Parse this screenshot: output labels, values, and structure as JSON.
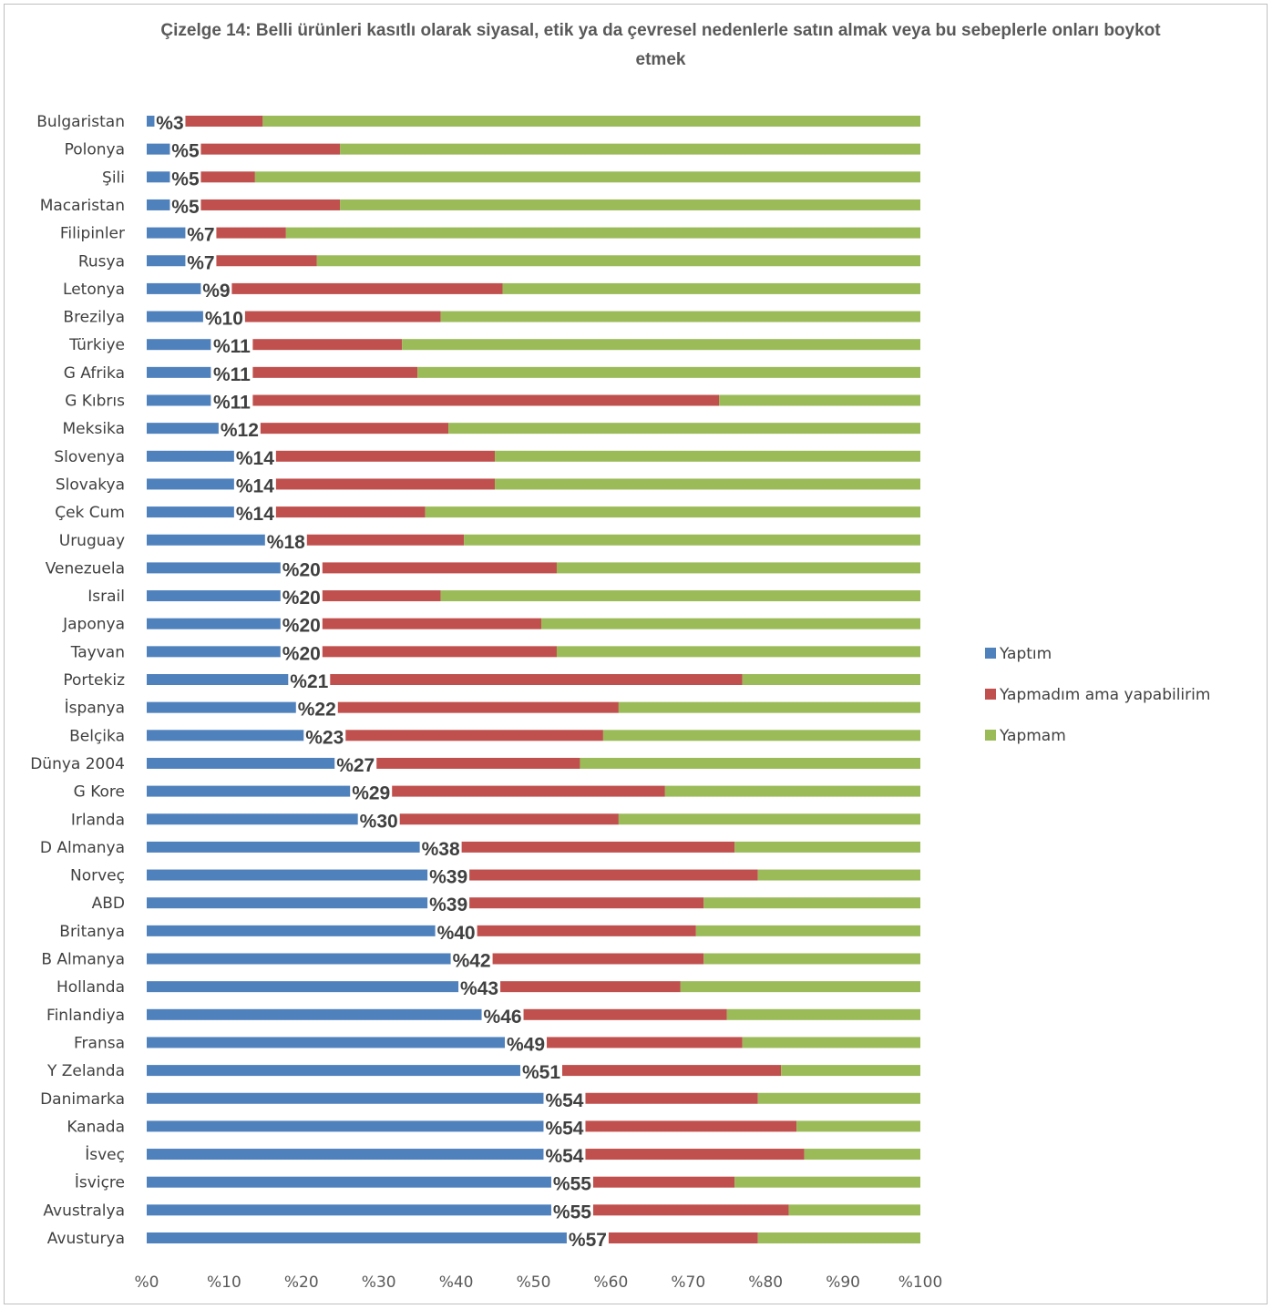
{
  "chart_data": {
    "type": "bar",
    "orientation": "horizontal",
    "stacked": "percent",
    "title": "Çizelge 14: Belli ürünleri kasıtlı olarak siyasal, etik ya da çevresel nedenlerle satın almak veya bu sebeplerle onları boykot etmek",
    "categories": [
      "Bulgaristan",
      "Polonya",
      "Şili",
      "Macaristan",
      "Filipinler",
      "Rusya",
      "Letonya",
      "Brezilya",
      "Türkiye",
      "G Afrika",
      "G Kıbrıs",
      "Meksika",
      "Slovenya",
      "Slovakya",
      "Çek Cum",
      "Uruguay",
      "Venezuela",
      "Israil",
      "Japonya",
      "Tayvan",
      "Portekiz",
      "İspanya",
      "Belçika",
      "Dünya 2004",
      "G Kore",
      "Irlanda",
      "D Almanya",
      "Norveç",
      "ABD",
      "Britanya",
      "B Almanya",
      "Hollanda",
      "Finlandiya",
      "Fransa",
      "Y Zelanda",
      "Danimarka",
      "Kanada",
      "İsveç",
      "İsviçre",
      "Avustralya",
      "Avusturya"
    ],
    "data_labels": [
      "%3",
      "%5",
      "%5",
      "%5",
      "%7",
      "%7",
      "%9",
      "%10",
      "%11",
      "%11",
      "%11",
      "%12",
      "%14",
      "%14",
      "%14",
      "%18",
      "%20",
      "%20",
      "%20",
      "%20",
      "%21",
      "%22",
      "%23",
      "%27",
      "%29",
      "%30",
      "%38",
      "%39",
      "%39",
      "%40",
      "%42",
      "%43",
      "%46",
      "%49",
      "%51",
      "%54",
      "%54",
      "%54",
      "%55",
      "%55",
      "%57"
    ],
    "series": [
      {
        "name": "Yaptım",
        "color": "#4f81bd",
        "values": [
          3,
          5,
          5,
          5,
          7,
          7,
          9,
          10,
          11,
          11,
          11,
          12,
          14,
          14,
          14,
          18,
          20,
          20,
          20,
          20,
          21,
          22,
          23,
          27,
          29,
          30,
          38,
          39,
          39,
          40,
          42,
          43,
          46,
          49,
          51,
          54,
          54,
          54,
          55,
          55,
          57
        ]
      },
      {
        "name": "Yapmadım ama yapabilirim",
        "color": "#c0504d",
        "values": [
          12,
          20,
          9,
          20,
          11,
          15,
          37,
          28,
          22,
          24,
          63,
          27,
          31,
          31,
          22,
          23,
          33,
          18,
          31,
          33,
          56,
          39,
          36,
          29,
          38,
          31,
          38,
          40,
          33,
          31,
          30,
          26,
          29,
          28,
          31,
          25,
          30,
          31,
          21,
          28,
          22
        ]
      },
      {
        "name": "Yapmam",
        "color": "#9bbb59",
        "values": [
          85,
          75,
          86,
          75,
          82,
          78,
          54,
          62,
          67,
          65,
          26,
          61,
          55,
          55,
          64,
          59,
          47,
          62,
          49,
          47,
          23,
          39,
          41,
          44,
          33,
          39,
          24,
          21,
          28,
          29,
          28,
          31,
          25,
          23,
          18,
          21,
          16,
          15,
          24,
          17,
          21
        ]
      }
    ],
    "xlim": [
      0,
      100
    ],
    "xticks": [
      "%0",
      "%10",
      "%20",
      "%30",
      "%40",
      "%50",
      "%60",
      "%70",
      "%80",
      "%90",
      "%100"
    ],
    "grid": false,
    "legend_position": "right"
  }
}
